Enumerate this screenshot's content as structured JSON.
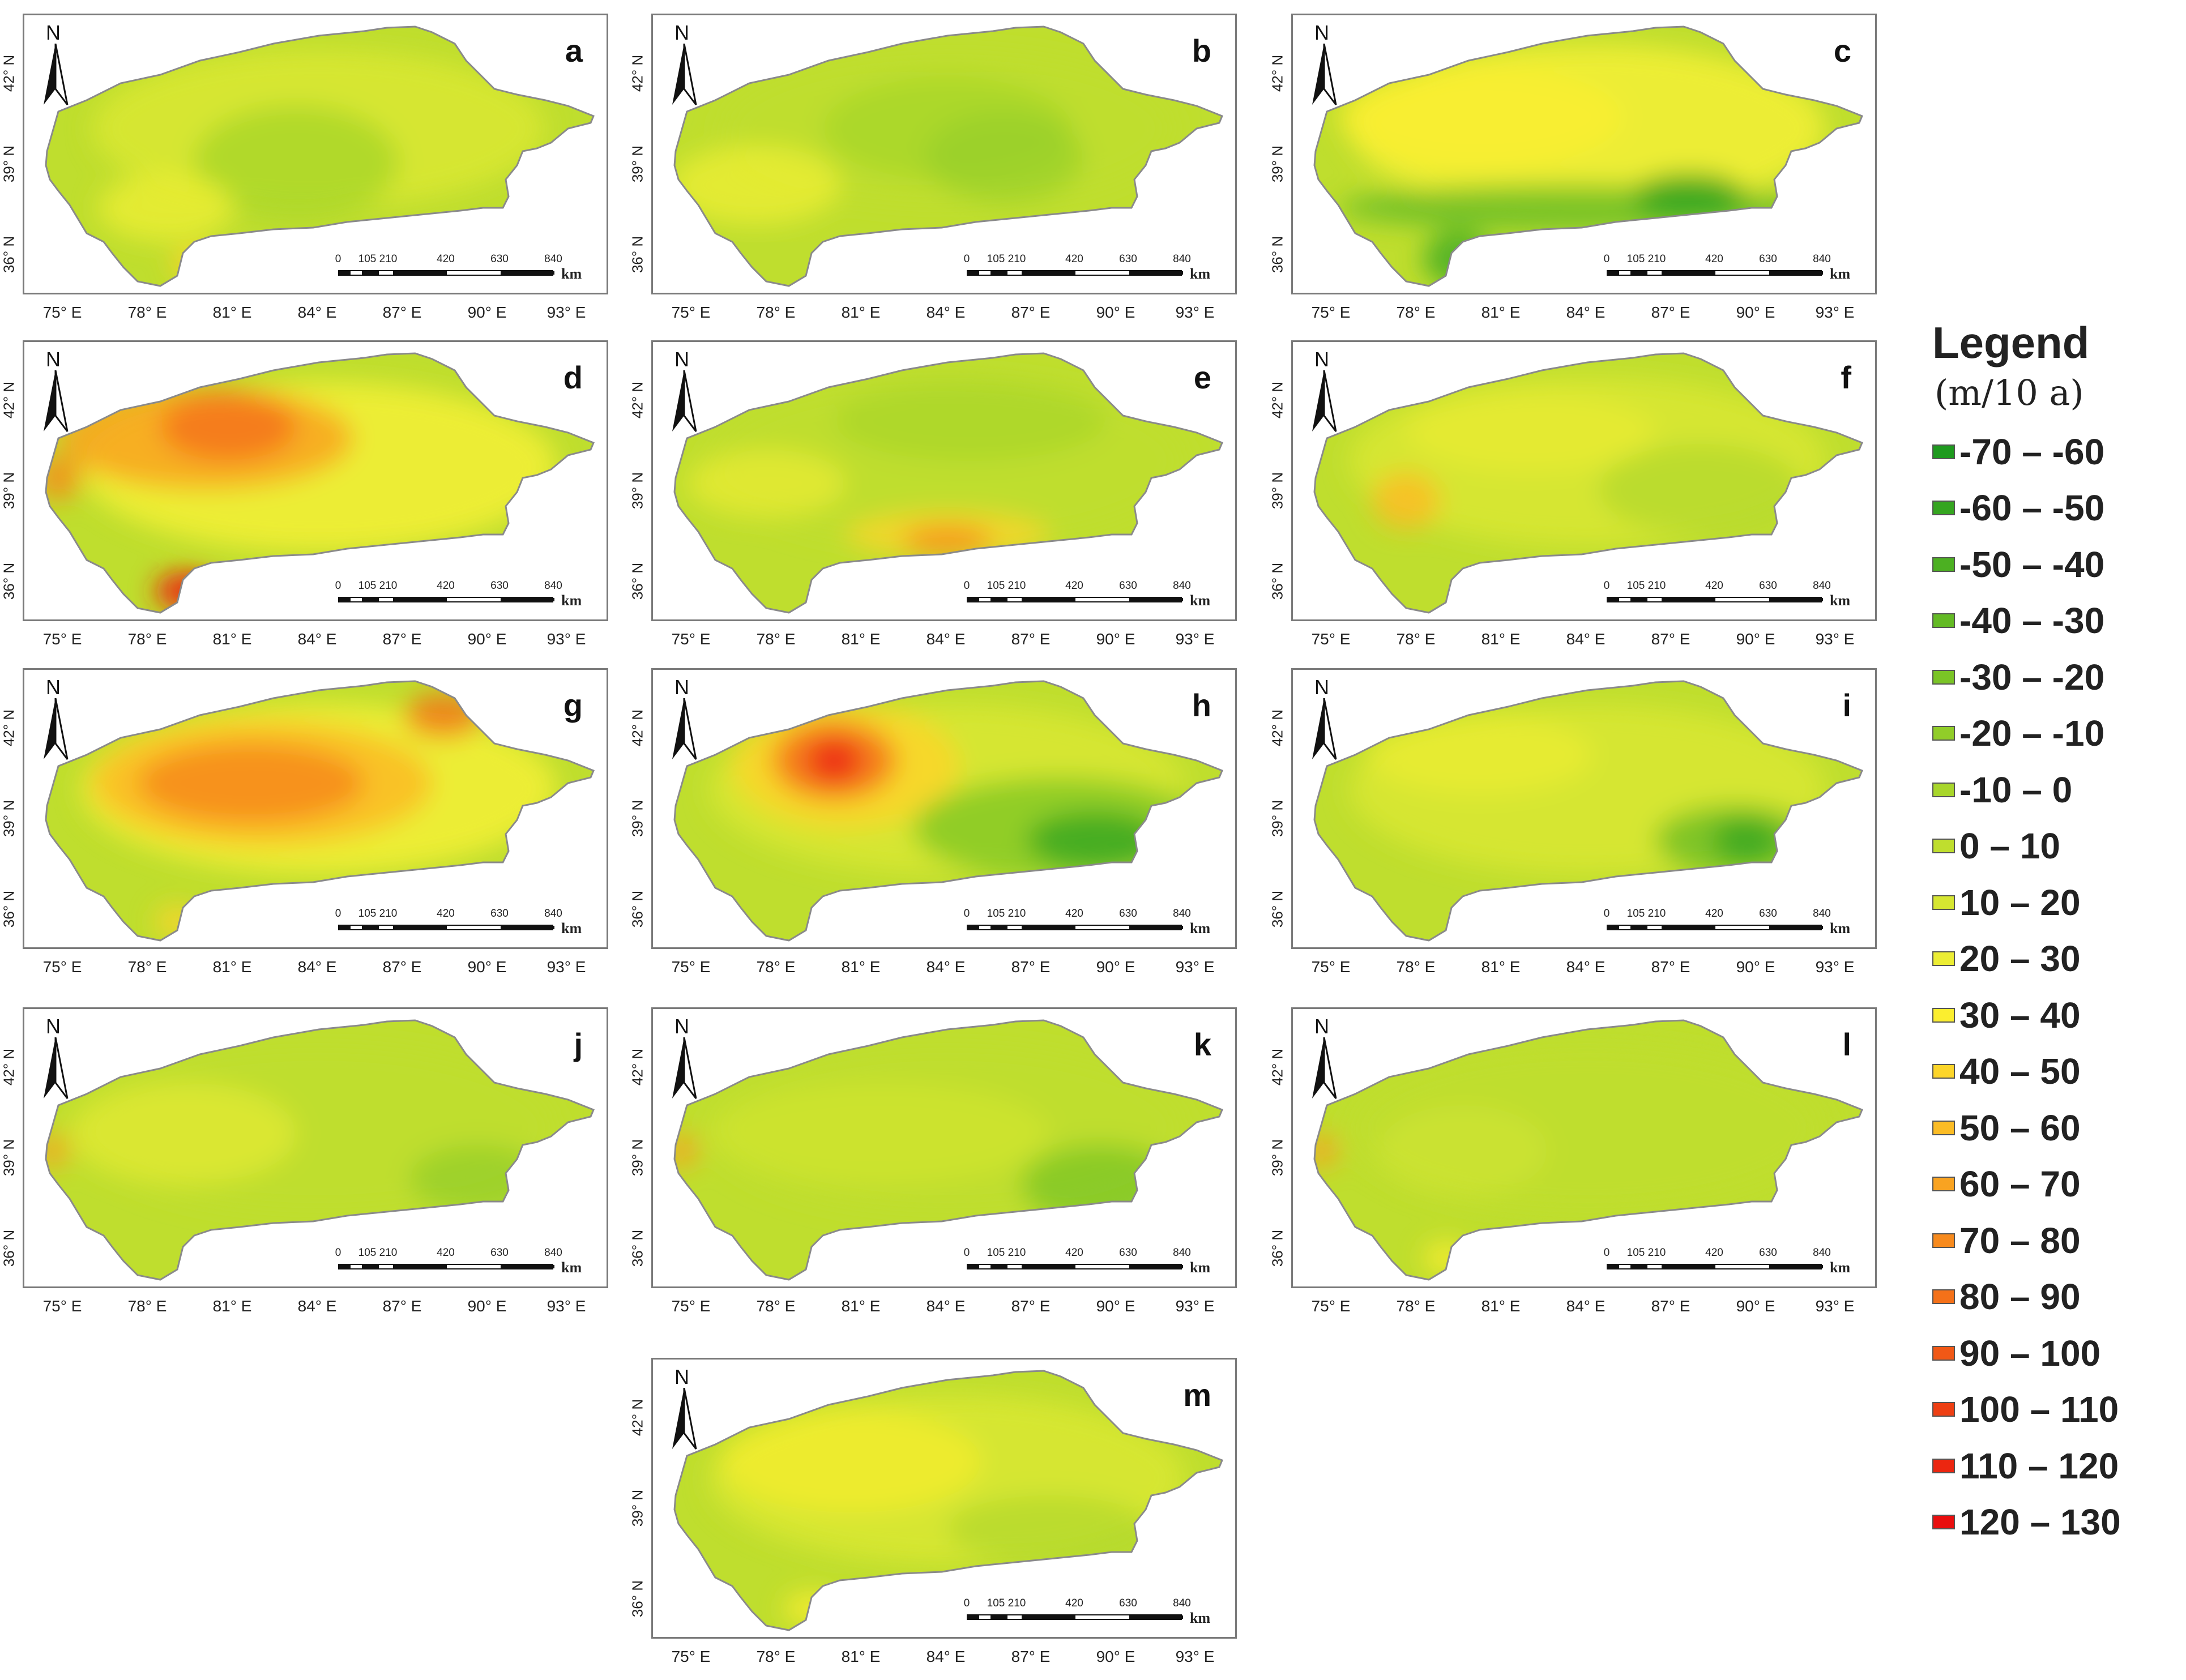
{
  "panels": [
    {
      "label": "a"
    },
    {
      "label": "b"
    },
    {
      "label": "c"
    },
    {
      "label": "d"
    },
    {
      "label": "e"
    },
    {
      "label": "f"
    },
    {
      "label": "g"
    },
    {
      "label": "h"
    },
    {
      "label": "i"
    },
    {
      "label": "j"
    },
    {
      "label": "k"
    },
    {
      "label": "l"
    },
    {
      "label": "m"
    }
  ],
  "compass_label": "N",
  "lat_labels": [
    "42° N",
    "39° N",
    "36° N"
  ],
  "lon_labels": [
    "75° E",
    "78° E",
    "81° E",
    "84° E",
    "87° E",
    "90° E",
    "93° E"
  ],
  "scale_bar": {
    "ticks": [
      "0",
      "105 210",
      "420",
      "630",
      "840"
    ],
    "unit": "km"
  },
  "legend": {
    "title": "Legend",
    "unit": "(m/10 a)",
    "classes": [
      {
        "label": "-70 – -60",
        "color": "#1e9a1e"
      },
      {
        "label": "-60 – -50",
        "color": "#35a520"
      },
      {
        "label": "-50 – -40",
        "color": "#4cb022"
      },
      {
        "label": "-40 – -30",
        "color": "#63ba24"
      },
      {
        "label": "-30 – -20",
        "color": "#7ac426"
      },
      {
        "label": "-20 – -10",
        "color": "#91cd29"
      },
      {
        "label": "-10 – 0",
        "color": "#a8d62b"
      },
      {
        "label": "0 – 10",
        "color": "#bfde2e"
      },
      {
        "label": "10 – 20",
        "color": "#d6e631"
      },
      {
        "label": "20 – 30",
        "color": "#eced34"
      },
      {
        "label": "30 – 40",
        "color": "#fbee2f"
      },
      {
        "label": "40 – 50",
        "color": "#fcd52a"
      },
      {
        "label": "50 – 60",
        "color": "#fbbc25"
      },
      {
        "label": "60 – 70",
        "color": "#f9a321"
      },
      {
        "label": "70 – 80",
        "color": "#f78a1d"
      },
      {
        "label": "80 – 90",
        "color": "#f47119"
      },
      {
        "label": "90 – 100",
        "color": "#f15816"
      },
      {
        "label": "100 – 110",
        "color": "#ee3f13"
      },
      {
        "label": "110 – 120",
        "color": "#ec2610"
      },
      {
        "label": "120 – 130",
        "color": "#e90e0e"
      }
    ]
  }
}
